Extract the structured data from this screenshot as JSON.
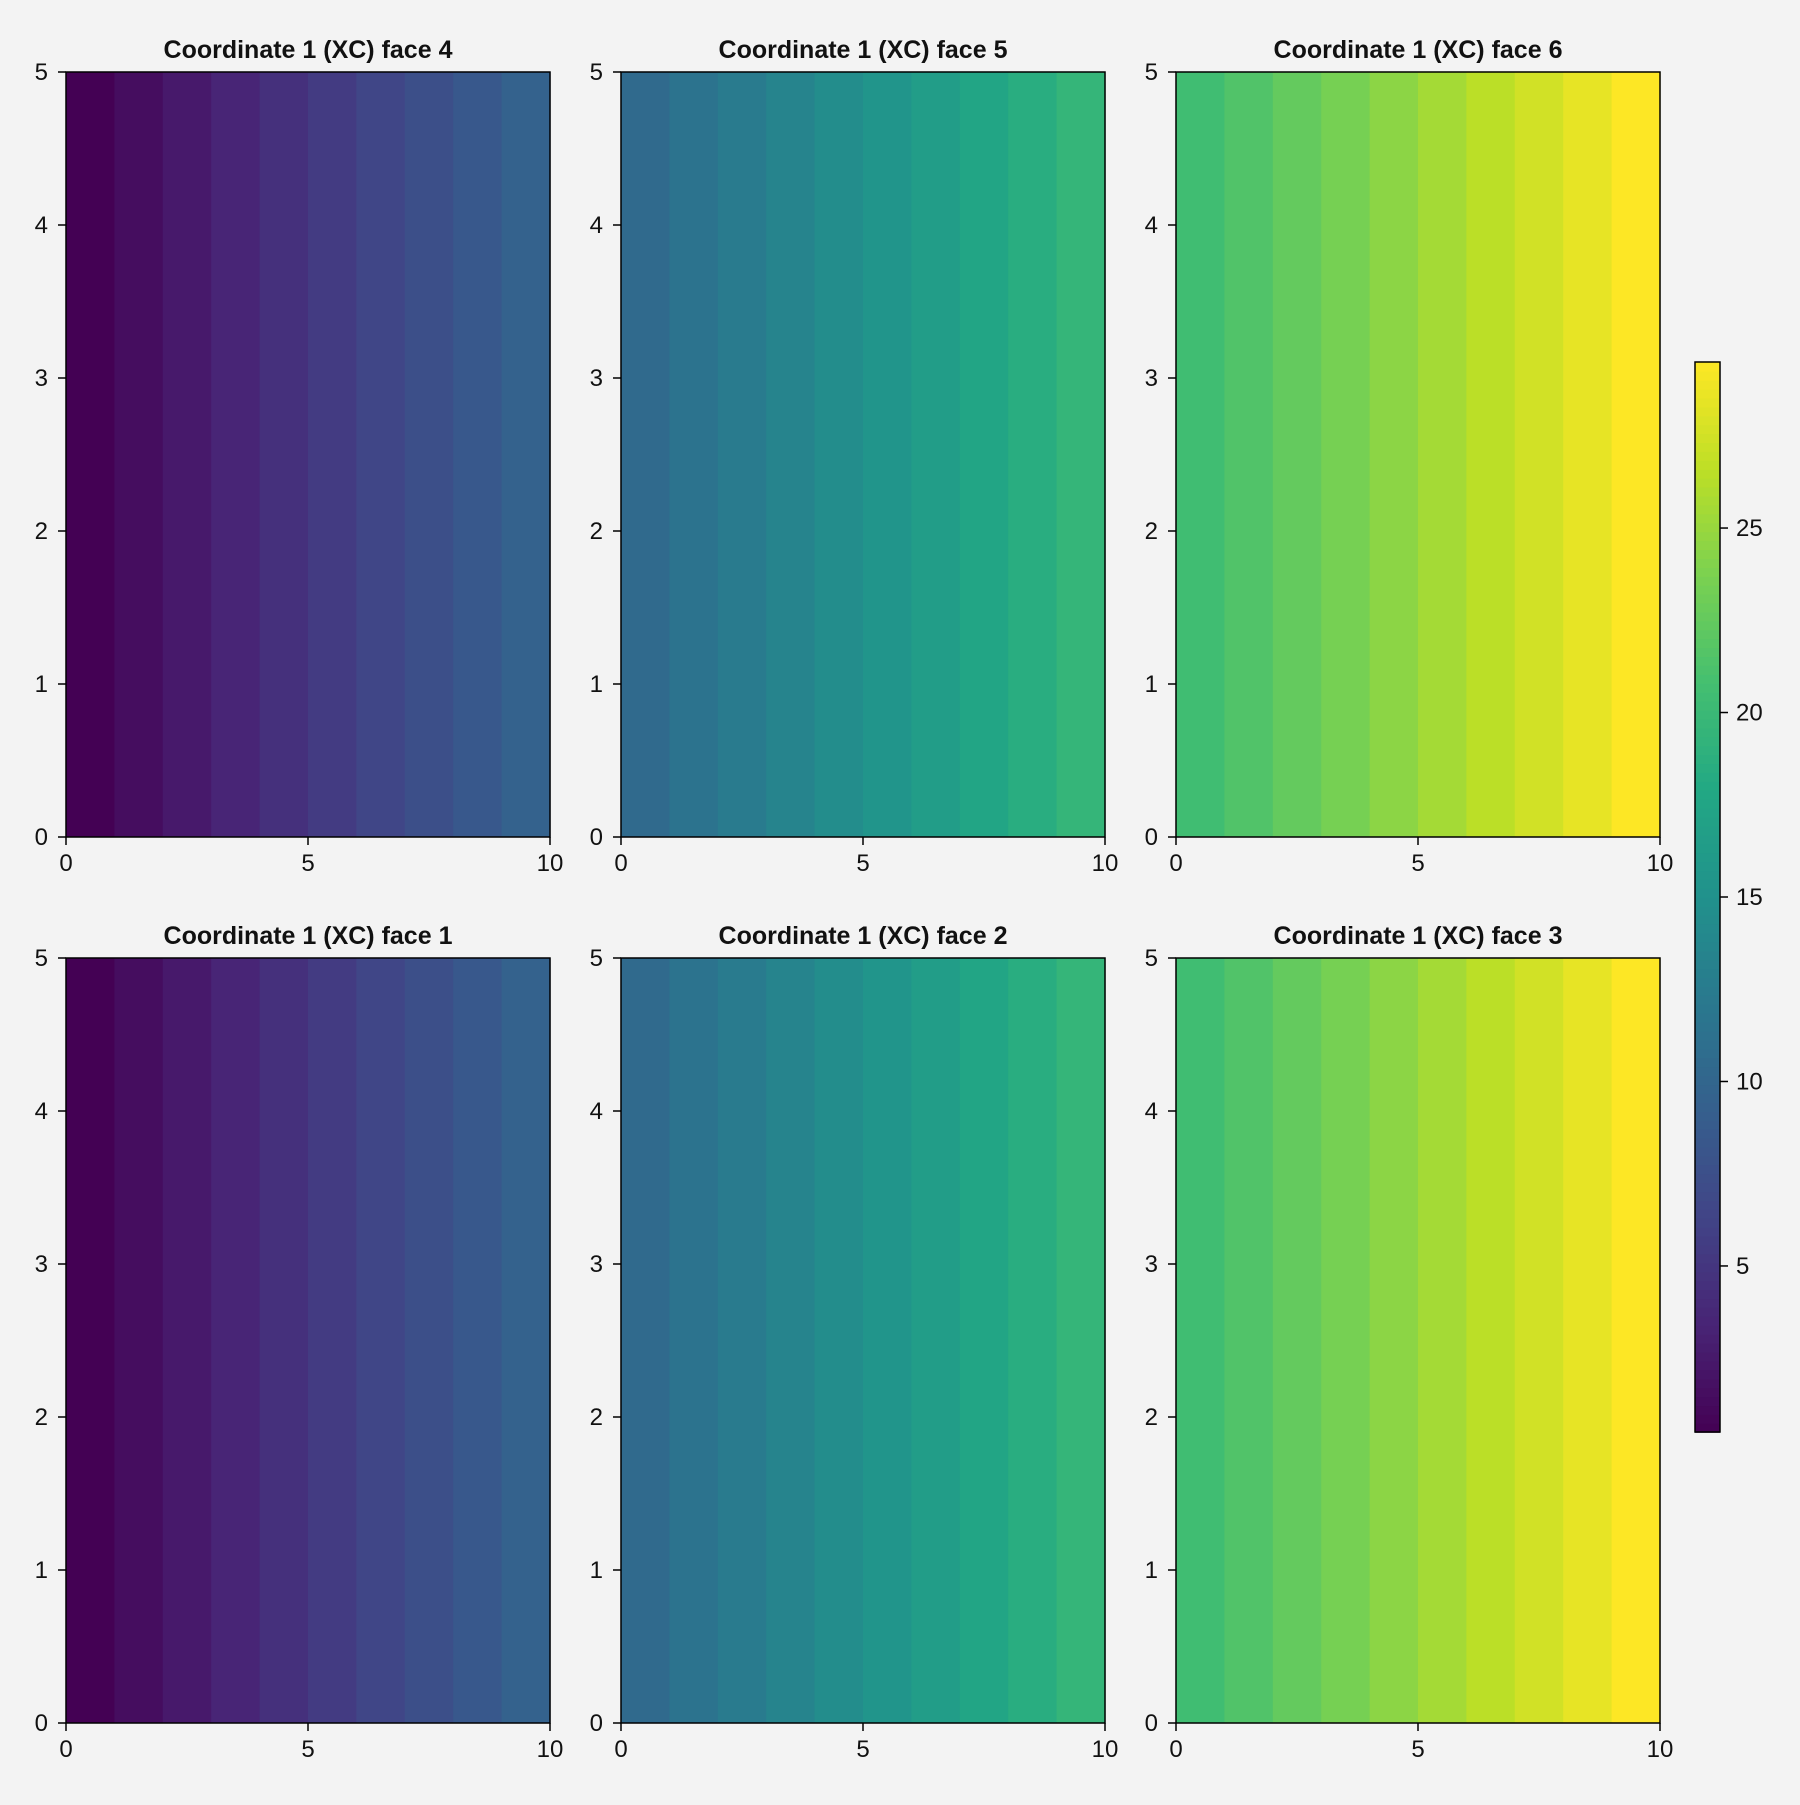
{
  "chart_data": {
    "type": "heatmap",
    "colormap": "viridis",
    "background": "#f3f3f3",
    "panels": [
      {
        "title": "Coordinate 1 (XC) face 4",
        "face": 4,
        "xlim": [
          0,
          10
        ],
        "ylim": [
          0,
          5
        ],
        "xticks": [
          0,
          5,
          10
        ],
        "yticks": [
          0,
          1,
          2,
          3,
          4,
          5
        ],
        "x_edges": [
          0,
          1,
          2,
          3,
          4,
          5,
          6,
          7,
          8,
          9,
          10
        ],
        "values": [
          0.5,
          1.5,
          2.5,
          3.5,
          4.5,
          5.5,
          6.5,
          7.5,
          8.5,
          9.5
        ]
      },
      {
        "title": "Coordinate 1 (XC) face 5",
        "face": 5,
        "xlim": [
          0,
          10
        ],
        "ylim": [
          0,
          5
        ],
        "xticks": [
          0,
          5,
          10
        ],
        "yticks": [
          0,
          1,
          2,
          3,
          4,
          5
        ],
        "x_edges": [
          0,
          1,
          2,
          3,
          4,
          5,
          6,
          7,
          8,
          9,
          10
        ],
        "values": [
          10.5,
          11.5,
          12.5,
          13.5,
          14.5,
          15.5,
          16.5,
          17.5,
          18.5,
          19.5
        ]
      },
      {
        "title": "Coordinate 1 (XC) face 6",
        "face": 6,
        "xlim": [
          0,
          10
        ],
        "ylim": [
          0,
          5
        ],
        "xticks": [
          0,
          5,
          10
        ],
        "yticks": [
          0,
          1,
          2,
          3,
          4,
          5
        ],
        "x_edges": [
          0,
          1,
          2,
          3,
          4,
          5,
          6,
          7,
          8,
          9,
          10
        ],
        "values": [
          20.5,
          21.5,
          22.5,
          23.5,
          24.5,
          25.5,
          26.5,
          27.5,
          28.5,
          29.5
        ]
      },
      {
        "title": "Coordinate 1 (XC) face 1",
        "face": 1,
        "xlim": [
          0,
          10
        ],
        "ylim": [
          0,
          5
        ],
        "xticks": [
          0,
          5,
          10
        ],
        "yticks": [
          0,
          1,
          2,
          3,
          4,
          5
        ],
        "x_edges": [
          0,
          1,
          2,
          3,
          4,
          5,
          6,
          7,
          8,
          9,
          10
        ],
        "values": [
          0.5,
          1.5,
          2.5,
          3.5,
          4.5,
          5.5,
          6.5,
          7.5,
          8.5,
          9.5
        ]
      },
      {
        "title": "Coordinate 1 (XC) face 2",
        "face": 2,
        "xlim": [
          0,
          10
        ],
        "ylim": [
          0,
          5
        ],
        "xticks": [
          0,
          5,
          10
        ],
        "yticks": [
          0,
          1,
          2,
          3,
          4,
          5
        ],
        "x_edges": [
          0,
          1,
          2,
          3,
          4,
          5,
          6,
          7,
          8,
          9,
          10
        ],
        "values": [
          10.5,
          11.5,
          12.5,
          13.5,
          14.5,
          15.5,
          16.5,
          17.5,
          18.5,
          19.5
        ]
      },
      {
        "title": "Coordinate 1 (XC) face 3",
        "face": 3,
        "xlim": [
          0,
          10
        ],
        "ylim": [
          0,
          5
        ],
        "xticks": [
          0,
          5,
          10
        ],
        "yticks": [
          0,
          1,
          2,
          3,
          4,
          5
        ],
        "x_edges": [
          0,
          1,
          2,
          3,
          4,
          5,
          6,
          7,
          8,
          9,
          10
        ],
        "values": [
          20.5,
          21.5,
          22.5,
          23.5,
          24.5,
          25.5,
          26.5,
          27.5,
          28.5,
          29.5
        ]
      }
    ],
    "colorbar": {
      "range": [
        0.5,
        29.5
      ],
      "ticks": [
        5,
        10,
        15,
        20,
        25
      ]
    }
  }
}
